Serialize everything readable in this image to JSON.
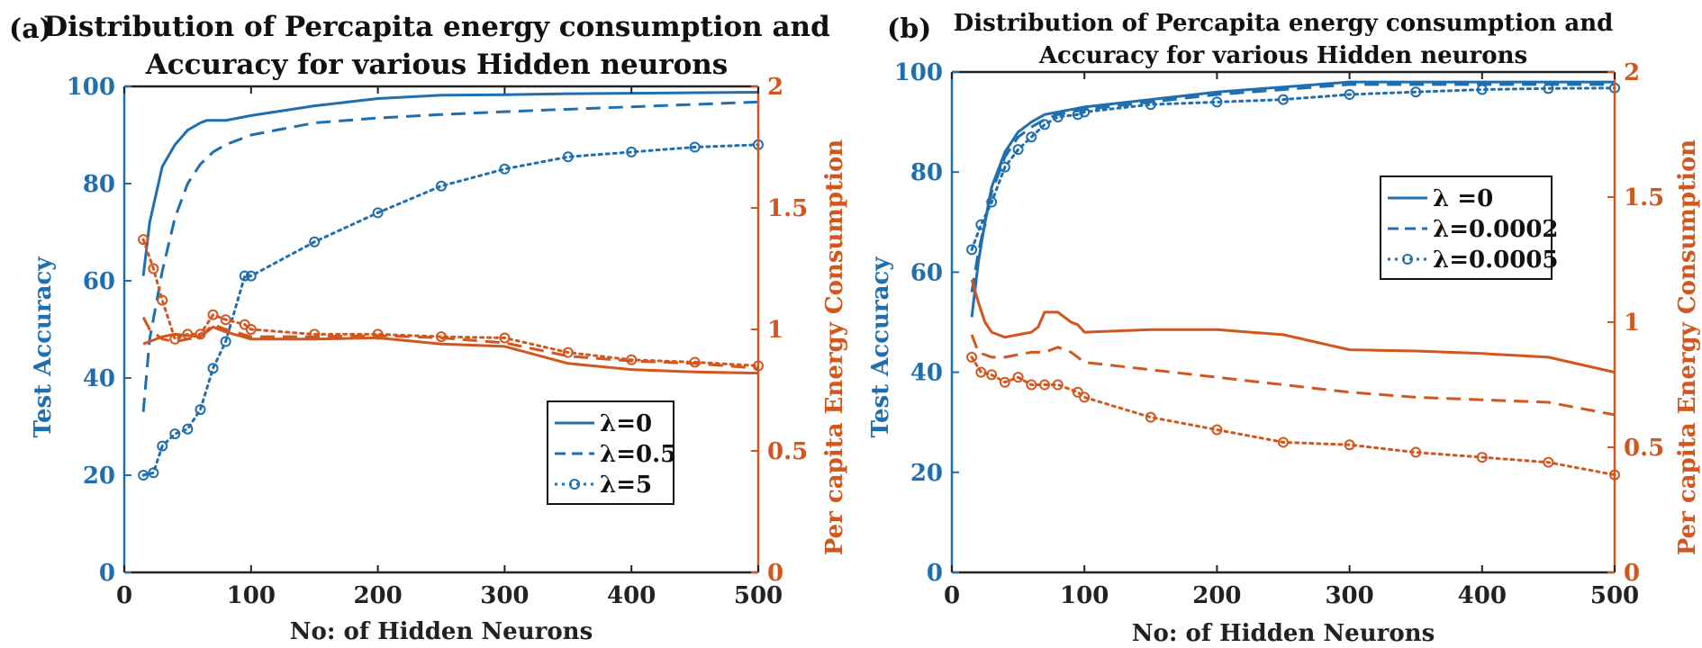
{
  "colors": {
    "accuracy": "#1f6fb0",
    "energy": "#d2561d",
    "axis": "#222222"
  },
  "chart_data": [
    {
      "type": "line",
      "panel_label": "(a)",
      "title_lines": [
        "Distribution of Percapita energy consumption and",
        "Accuracy for various Hidden neurons"
      ],
      "xlabel": "No: of Hidden Neurons",
      "ylabel": "Test Accuracy",
      "y2label": "Per capita Energy Consumption",
      "xlim": [
        0,
        500
      ],
      "ylim": [
        0,
        100
      ],
      "y2lim": [
        0,
        2
      ],
      "xticks": [
        "0",
        "100",
        "200",
        "300",
        "400",
        "500"
      ],
      "yticks": [
        "0",
        "20",
        "40",
        "60",
        "80",
        "100"
      ],
      "y2ticks": [
        "0",
        "0.5",
        "1",
        "1.5",
        "2"
      ],
      "grid": false,
      "legend_position": "right-middle",
      "legend": [
        "λ=0",
        "λ=0.5",
        "λ=5"
      ],
      "series": [
        {
          "name": "λ=0",
          "axis": "left",
          "style": "solid",
          "x": [
            15,
            20,
            30,
            40,
            50,
            60,
            65,
            70,
            80,
            100,
            150,
            200,
            250,
            300,
            350,
            400,
            450,
            500
          ],
          "y": [
            61,
            72,
            83.5,
            88,
            91,
            92.5,
            93,
            93,
            93,
            94,
            96,
            97.5,
            98.2,
            98.3,
            98.5,
            98.6,
            98.7,
            98.8
          ]
        },
        {
          "name": "λ=0.5",
          "axis": "left",
          "style": "dashed",
          "x": [
            15,
            20,
            30,
            40,
            50,
            60,
            70,
            80,
            100,
            150,
            200,
            250,
            300,
            350,
            400,
            450,
            500
          ],
          "y": [
            33,
            48,
            62,
            73,
            80,
            84,
            86.5,
            88,
            90,
            92.5,
            93.5,
            94.2,
            94.8,
            95.3,
            95.8,
            96.3,
            96.8
          ]
        },
        {
          "name": "λ=5",
          "axis": "left",
          "style": "dotted-marker",
          "x": [
            15,
            23,
            30,
            40,
            50,
            60,
            70,
            80,
            95,
            100,
            150,
            200,
            250,
            300,
            350,
            400,
            450,
            500
          ],
          "y": [
            20,
            20.5,
            26,
            28.5,
            29.5,
            33.5,
            42,
            47.5,
            61,
            61,
            68,
            74,
            79.5,
            83,
            85.5,
            86.5,
            87.5,
            88
          ]
        },
        {
          "name": "λ=0",
          "axis": "right",
          "style": "solid",
          "x": [
            15,
            20,
            30,
            40,
            50,
            60,
            70,
            80,
            100,
            150,
            200,
            250,
            300,
            350,
            400,
            450,
            500
          ],
          "y": [
            0.94,
            0.95,
            0.97,
            0.98,
            0.975,
            0.97,
            1.01,
            0.99,
            0.96,
            0.96,
            0.965,
            0.94,
            0.93,
            0.86,
            0.835,
            0.825,
            0.82
          ]
        },
        {
          "name": "λ=0.5",
          "axis": "right",
          "style": "dashed",
          "x": [
            15,
            20,
            30,
            40,
            50,
            60,
            70,
            80,
            100,
            150,
            200,
            250,
            300,
            350,
            400,
            450,
            500
          ],
          "y": [
            1.05,
            1.0,
            0.96,
            0.95,
            0.96,
            0.97,
            1.02,
            1.0,
            0.97,
            0.97,
            0.975,
            0.965,
            0.945,
            0.89,
            0.87,
            0.86,
            0.84
          ]
        },
        {
          "name": "λ=5",
          "axis": "right",
          "style": "dotted-marker",
          "x": [
            15,
            23,
            30,
            40,
            50,
            60,
            70,
            80,
            95,
            100,
            150,
            200,
            250,
            300,
            350,
            400,
            450,
            500
          ],
          "y": [
            1.37,
            1.25,
            1.12,
            0.96,
            0.98,
            0.98,
            1.06,
            1.04,
            1.02,
            1.0,
            0.98,
            0.98,
            0.97,
            0.965,
            0.905,
            0.875,
            0.865,
            0.85
          ]
        }
      ]
    },
    {
      "type": "line",
      "panel_label": "(b)",
      "title_lines": [
        "Distribution of Percapita energy consumption and",
        "Accuracy for various Hidden neurons"
      ],
      "xlabel": "No: of Hidden Neurons",
      "ylabel": "Test Accuracy",
      "y2label": "Per capita Energy Consumption",
      "xlim": [
        0,
        500
      ],
      "ylim": [
        0,
        100
      ],
      "y2lim": [
        0,
        2
      ],
      "xticks": [
        "0",
        "100",
        "200",
        "300",
        "400",
        "500"
      ],
      "yticks": [
        "0",
        "20",
        "40",
        "60",
        "80",
        "100"
      ],
      "y2ticks": [
        "0",
        "0.5",
        "1",
        "1.5",
        "2"
      ],
      "grid": false,
      "legend_position": "upper-right",
      "legend": [
        "λ =0",
        "λ=0.0002",
        "λ=0.0005"
      ],
      "series": [
        {
          "name": "λ =0",
          "axis": "left",
          "style": "solid",
          "x": [
            15,
            20,
            25,
            30,
            40,
            50,
            60,
            70,
            80,
            90,
            100,
            150,
            200,
            250,
            300,
            350,
            400,
            450,
            500
          ],
          "y": [
            51,
            62,
            70,
            77,
            84,
            88,
            90,
            91.5,
            92,
            92.5,
            93,
            94.5,
            96,
            97,
            98,
            98,
            98,
            98,
            98
          ]
        },
        {
          "name": "λ=0.0002",
          "axis": "left",
          "style": "dashed",
          "x": [
            15,
            20,
            25,
            30,
            40,
            50,
            60,
            70,
            80,
            90,
            100,
            150,
            200,
            250,
            300,
            350,
            400,
            450,
            500
          ],
          "y": [
            56,
            64,
            70,
            76,
            83,
            87,
            89,
            90.5,
            91.5,
            92,
            92.5,
            94,
            95.5,
            96.5,
            97.5,
            97.5,
            97.5,
            97.5,
            97.5
          ]
        },
        {
          "name": "λ=0.0005",
          "axis": "left",
          "style": "dotted-marker",
          "x": [
            15,
            22,
            30,
            40,
            50,
            60,
            70,
            80,
            95,
            100,
            150,
            200,
            250,
            300,
            350,
            400,
            450,
            500
          ],
          "y": [
            64.5,
            69.5,
            74,
            81,
            84.5,
            87,
            89.5,
            91,
            91.5,
            92,
            93.5,
            94,
            94.5,
            95.5,
            96,
            96.5,
            96.7,
            96.8
          ]
        },
        {
          "name": "λ =0",
          "axis": "right",
          "style": "solid",
          "x": [
            15,
            20,
            25,
            30,
            40,
            50,
            60,
            65,
            70,
            80,
            90,
            95,
            100,
            150,
            200,
            250,
            300,
            350,
            400,
            450,
            500
          ],
          "y": [
            1.17,
            1.08,
            1.0,
            0.96,
            0.94,
            0.95,
            0.96,
            0.98,
            1.04,
            1.04,
            1.0,
            0.99,
            0.96,
            0.97,
            0.97,
            0.95,
            0.89,
            0.885,
            0.875,
            0.86,
            0.8
          ]
        },
        {
          "name": "λ=0.0002",
          "axis": "right",
          "style": "dashed",
          "x": [
            15,
            20,
            30,
            40,
            50,
            60,
            70,
            80,
            90,
            100,
            150,
            200,
            250,
            300,
            350,
            400,
            450,
            500
          ],
          "y": [
            0.95,
            0.88,
            0.86,
            0.86,
            0.87,
            0.88,
            0.88,
            0.9,
            0.88,
            0.84,
            0.81,
            0.78,
            0.75,
            0.72,
            0.7,
            0.69,
            0.68,
            0.63
          ]
        },
        {
          "name": "λ=0.0005",
          "axis": "right",
          "style": "dotted-marker",
          "x": [
            15,
            22,
            30,
            40,
            50,
            60,
            70,
            80,
            95,
            100,
            150,
            200,
            250,
            300,
            350,
            400,
            450,
            500
          ],
          "y": [
            0.86,
            0.8,
            0.79,
            0.76,
            0.78,
            0.75,
            0.75,
            0.75,
            0.72,
            0.7,
            0.62,
            0.57,
            0.52,
            0.51,
            0.48,
            0.46,
            0.44,
            0.39
          ]
        }
      ]
    }
  ]
}
